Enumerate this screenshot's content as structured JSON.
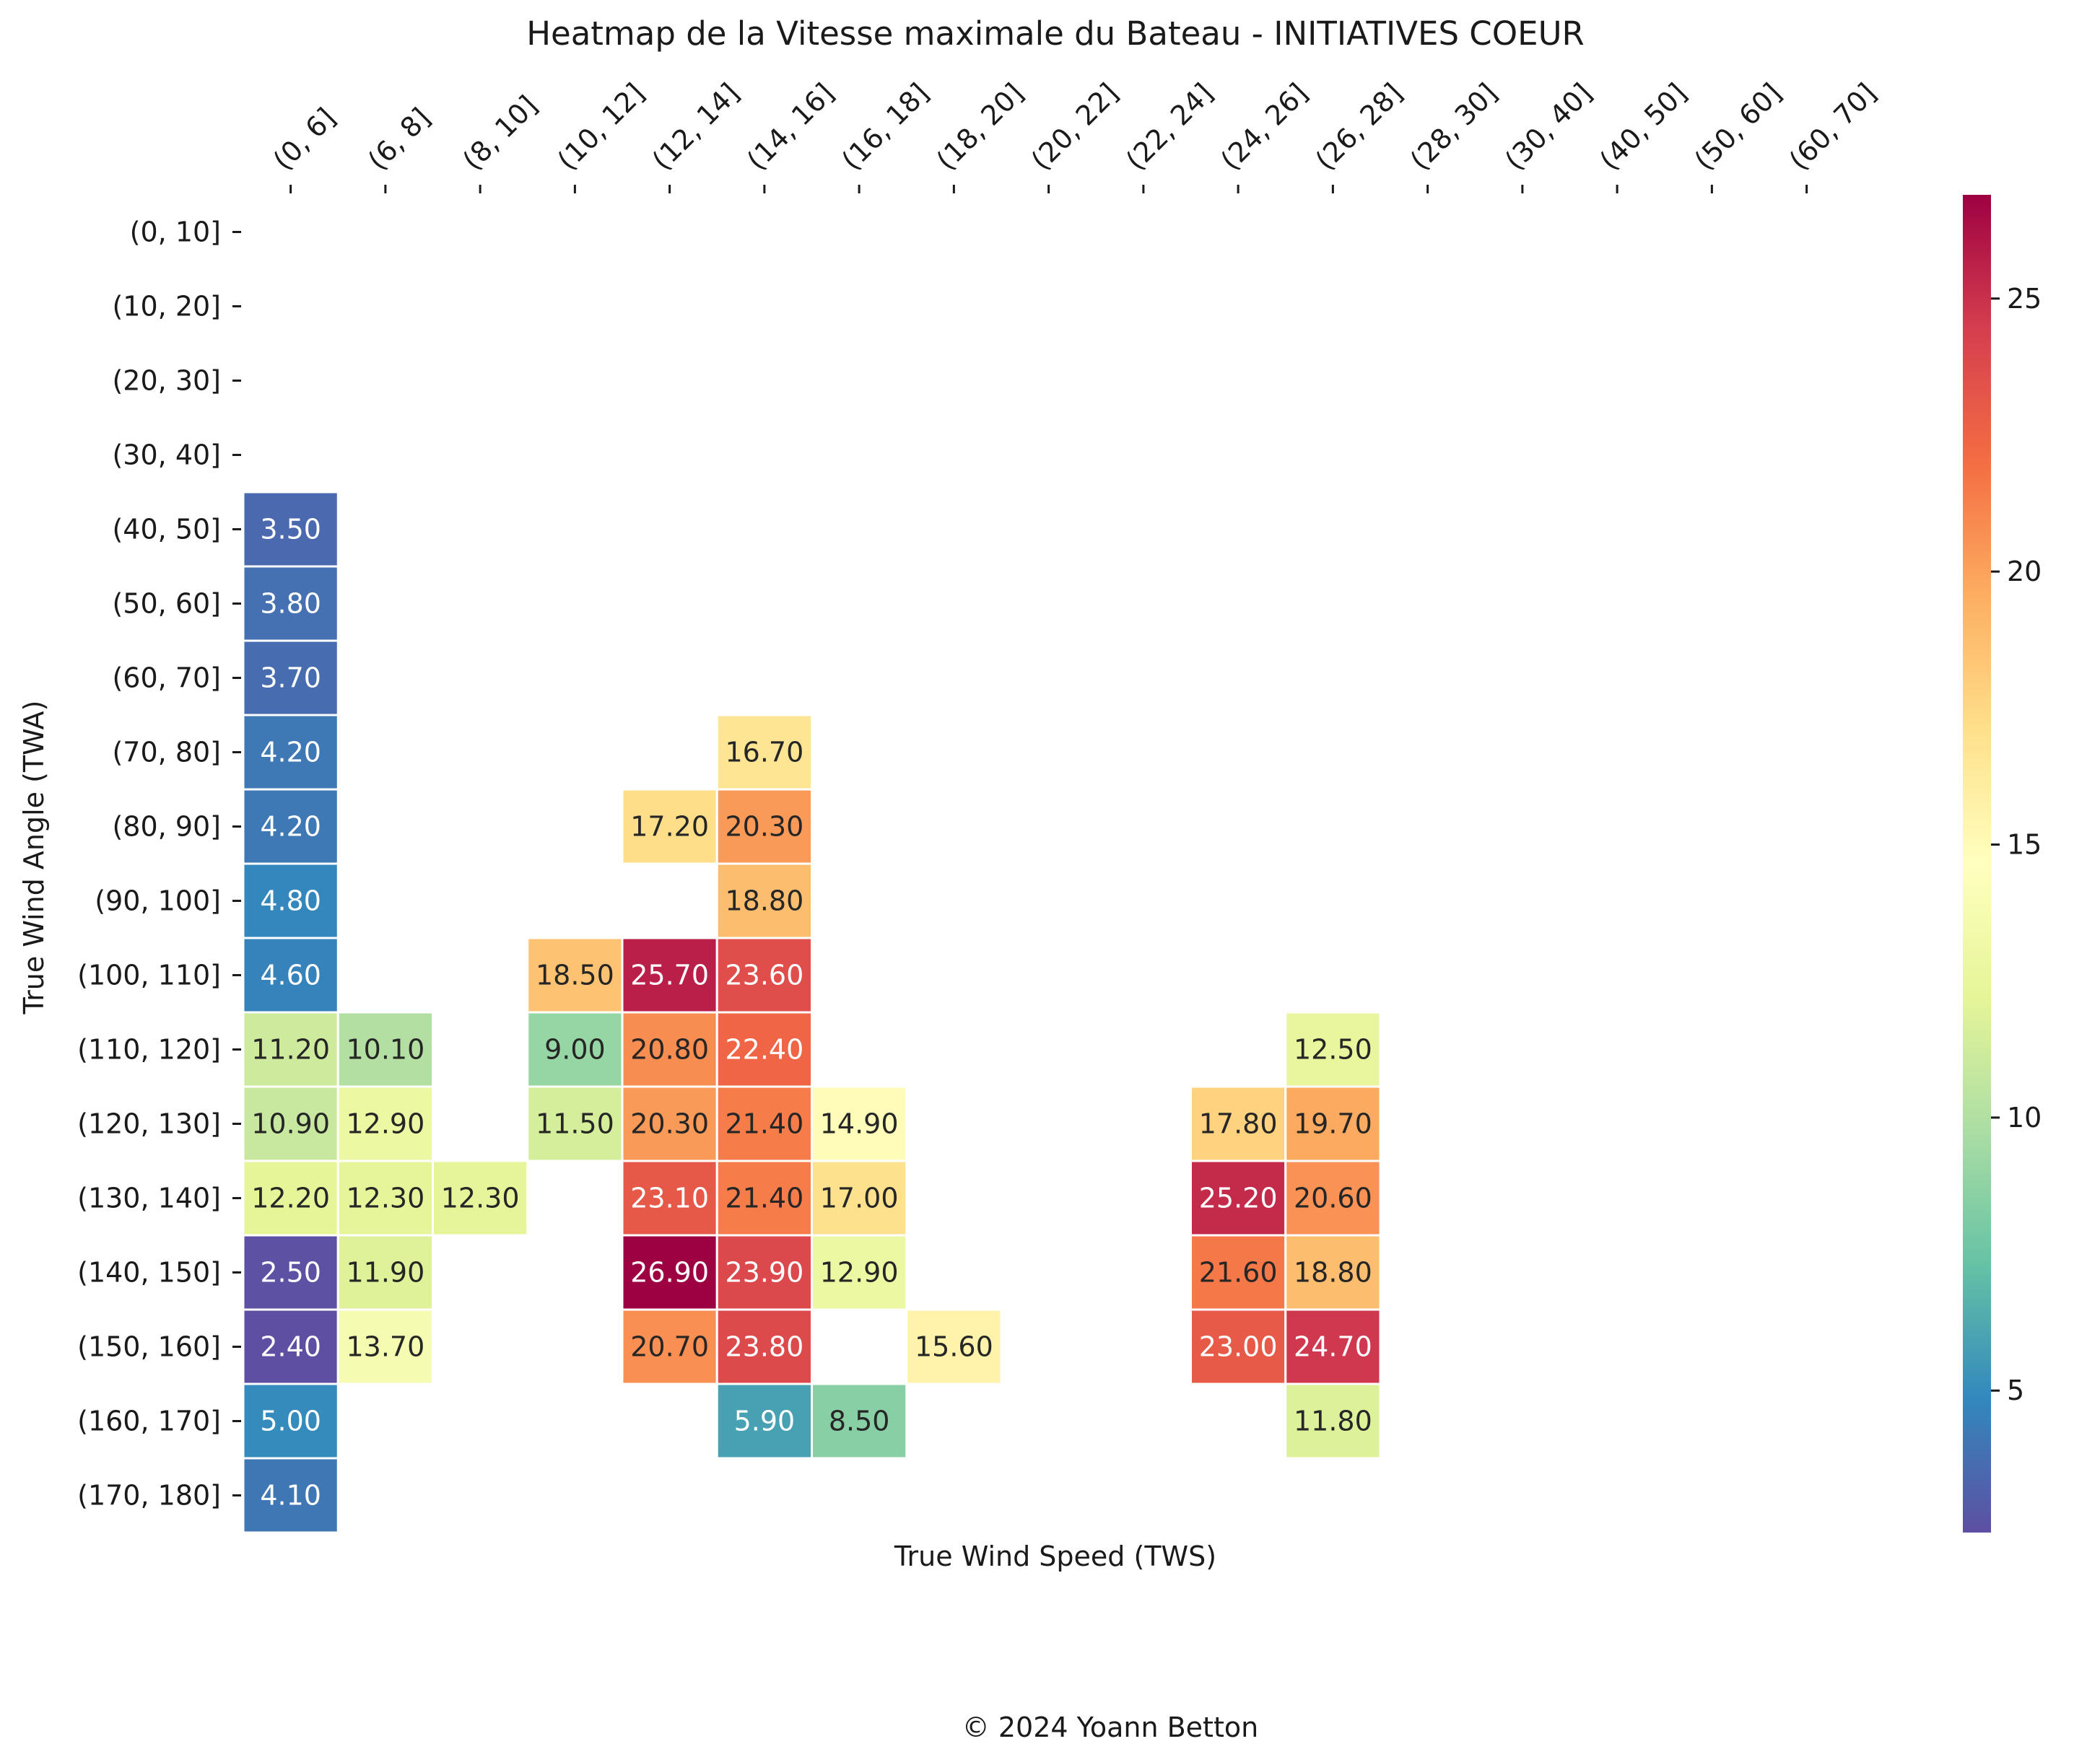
{
  "chart_data": {
    "type": "heatmap",
    "title": "Heatmap de la Vitesse maximale du Bateau - INITIATIVES COEUR",
    "xlabel": "True Wind Speed (TWS)",
    "ylabel": "True Wind Angle (TWA)",
    "x_categories": [
      "(0, 6]",
      "(6, 8]",
      "(8, 10]",
      "(10, 12]",
      "(12, 14]",
      "(14, 16]",
      "(16, 18]",
      "(18, 20]",
      "(20, 22]",
      "(22, 24]",
      "(24, 26]",
      "(26, 28]",
      "(28, 30]",
      "(30, 40]",
      "(40, 50]",
      "(50, 60]",
      "(60, 70]"
    ],
    "y_categories": [
      "(0, 10]",
      "(10, 20]",
      "(20, 30]",
      "(30, 40]",
      "(40, 50]",
      "(50, 60]",
      "(60, 70]",
      "(70, 80]",
      "(80, 90]",
      "(90, 100]",
      "(100, 110]",
      "(110, 120]",
      "(120, 130]",
      "(130, 140]",
      "(140, 150]",
      "(150, 160]",
      "(160, 170]",
      "(170, 180]"
    ],
    "values": [
      [
        null,
        null,
        null,
        null,
        null,
        null,
        null,
        null,
        null,
        null,
        null,
        null,
        null,
        null,
        null,
        null,
        null
      ],
      [
        null,
        null,
        null,
        null,
        null,
        null,
        null,
        null,
        null,
        null,
        null,
        null,
        null,
        null,
        null,
        null,
        null
      ],
      [
        null,
        null,
        null,
        null,
        null,
        null,
        null,
        null,
        null,
        null,
        null,
        null,
        null,
        null,
        null,
        null,
        null
      ],
      [
        null,
        null,
        null,
        null,
        null,
        null,
        null,
        null,
        null,
        null,
        null,
        null,
        null,
        null,
        null,
        null,
        null
      ],
      [
        3.5,
        null,
        null,
        null,
        null,
        null,
        null,
        null,
        null,
        null,
        null,
        null,
        null,
        null,
        null,
        null,
        null
      ],
      [
        3.8,
        null,
        null,
        null,
        null,
        null,
        null,
        null,
        null,
        null,
        null,
        null,
        null,
        null,
        null,
        null,
        null
      ],
      [
        3.7,
        null,
        null,
        null,
        null,
        null,
        null,
        null,
        null,
        null,
        null,
        null,
        null,
        null,
        null,
        null,
        null
      ],
      [
        4.2,
        null,
        null,
        null,
        null,
        16.7,
        null,
        null,
        null,
        null,
        null,
        null,
        null,
        null,
        null,
        null,
        null
      ],
      [
        4.2,
        null,
        null,
        null,
        17.2,
        20.3,
        null,
        null,
        null,
        null,
        null,
        null,
        null,
        null,
        null,
        null,
        null
      ],
      [
        4.8,
        null,
        null,
        null,
        null,
        18.8,
        null,
        null,
        null,
        null,
        null,
        null,
        null,
        null,
        null,
        null,
        null
      ],
      [
        4.6,
        null,
        null,
        18.5,
        25.7,
        23.6,
        null,
        null,
        null,
        null,
        null,
        null,
        null,
        null,
        null,
        null,
        null
      ],
      [
        11.2,
        10.1,
        null,
        9.0,
        20.8,
        22.4,
        null,
        null,
        null,
        null,
        null,
        12.5,
        null,
        null,
        null,
        null,
        null
      ],
      [
        10.9,
        12.9,
        null,
        11.5,
        20.3,
        21.4,
        14.9,
        null,
        null,
        null,
        17.8,
        19.7,
        null,
        null,
        null,
        null,
        null
      ],
      [
        12.2,
        12.3,
        12.3,
        null,
        23.1,
        21.4,
        17.0,
        null,
        null,
        null,
        25.2,
        20.6,
        null,
        null,
        null,
        null,
        null
      ],
      [
        2.5,
        11.9,
        null,
        null,
        26.9,
        23.9,
        12.9,
        null,
        null,
        null,
        21.6,
        18.8,
        null,
        null,
        null,
        null,
        null
      ],
      [
        2.4,
        13.7,
        null,
        null,
        20.7,
        23.8,
        null,
        15.6,
        null,
        null,
        23.0,
        24.7,
        null,
        null,
        null,
        null,
        null
      ],
      [
        5.0,
        null,
        null,
        null,
        null,
        5.9,
        8.5,
        null,
        null,
        null,
        null,
        11.8,
        null,
        null,
        null,
        null,
        null
      ],
      [
        4.1,
        null,
        null,
        null,
        null,
        null,
        null,
        null,
        null,
        null,
        null,
        null,
        null,
        null,
        null,
        null,
        null
      ]
    ],
    "value_format": "0.00",
    "colormap": "Spectral_r",
    "color_range": [
      2.4,
      26.9
    ],
    "colorbar_ticks": [
      5,
      10,
      15,
      20,
      25
    ],
    "x_tick_position": "top",
    "grid": false,
    "cell_border_color": "#ffffff"
  },
  "footer": {
    "copyright": "© 2024 Yoann Betton"
  }
}
